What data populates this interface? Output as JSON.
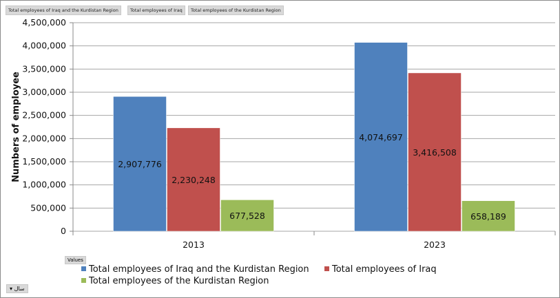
{
  "field_buttons": [
    "Total employees of Iraq and the Kurdistan Region",
    "Total employees of Iraq",
    "Total employees of the Kurdistan Region"
  ],
  "values_button": "Values",
  "year_filter": {
    "label": "سال",
    "icon": "dropdown-arrow-icon"
  },
  "chart_data": {
    "type": "bar",
    "title": "",
    "xlabel": "",
    "ylabel": "Numbers of employee",
    "ylim": [
      0,
      4500000
    ],
    "yticks": [
      "0",
      "500,000",
      "1,000,000",
      "1,500,000",
      "2,000,000",
      "2,500,000",
      "3,000,000",
      "3,500,000",
      "4,000,000",
      "4,500,000"
    ],
    "categories": [
      "2013",
      "2023"
    ],
    "grid": true,
    "legend_position": "bottom",
    "series": [
      {
        "name": "Total employees of Iraq and the Kurdistan Region",
        "color": "#4f81bd",
        "values": [
          2907776,
          4074697
        ],
        "labels": [
          "2,907,776",
          "4,074,697"
        ]
      },
      {
        "name": "Total employees of Iraq",
        "color": "#c0504d",
        "values": [
          2230248,
          3416508
        ],
        "labels": [
          "2,230,248",
          "3,416,508"
        ]
      },
      {
        "name": "Total employees of the Kurdistan Region",
        "color": "#9bbb59",
        "values": [
          677528,
          658189
        ],
        "labels": [
          "677,528",
          "658,189"
        ]
      }
    ]
  }
}
